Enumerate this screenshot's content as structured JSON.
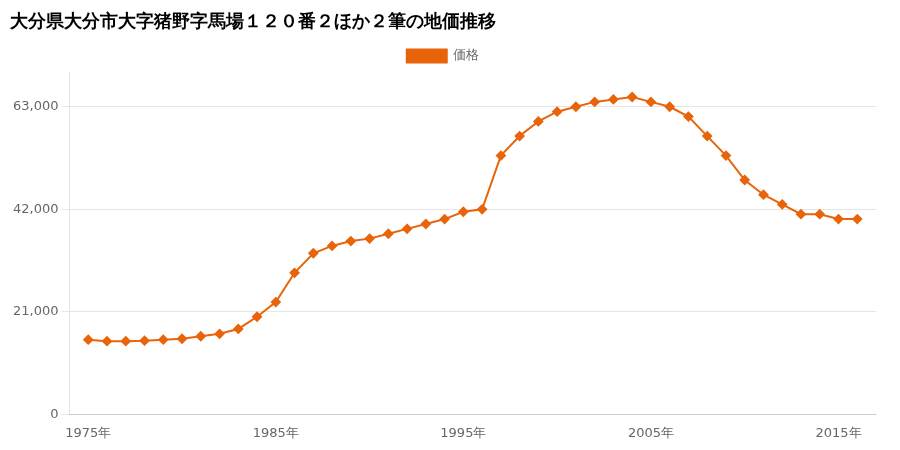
{
  "chart_data": {
    "type": "line",
    "title": "大分県大分市大字猪野字馬場１２０番２ほか２筆の地価推移",
    "series": [
      {
        "name": "価格",
        "color": "#E8640A",
        "marker": "diamond",
        "values": [
          15300,
          15000,
          15000,
          15100,
          15300,
          15500,
          16000,
          16500,
          17500,
          20000,
          23000,
          29000,
          33000,
          34500,
          35500,
          36000,
          37000,
          38000,
          39000,
          40000,
          41500,
          42000,
          53000,
          57000,
          60000,
          62000,
          63000,
          64000,
          64500,
          65000,
          64000,
          63000,
          61000,
          57000,
          53000,
          48000,
          45000,
          43000,
          41000,
          41000,
          40000,
          40000
        ]
      }
    ],
    "x": [
      1975,
      1976,
      1977,
      1978,
      1979,
      1980,
      1981,
      1982,
      1983,
      1984,
      1985,
      1986,
      1987,
      1988,
      1989,
      1990,
      1991,
      1992,
      1993,
      1994,
      1995,
      1996,
      1997,
      1998,
      1999,
      2000,
      2001,
      2002,
      2003,
      2004,
      2005,
      2006,
      2007,
      2008,
      2009,
      2010,
      2011,
      2012,
      2013,
      2014,
      2015,
      2016
    ],
    "xlim": [
      1974,
      2017
    ],
    "xticks": [
      {
        "value": 1975,
        "label": "1975年"
      },
      {
        "value": 1985,
        "label": "1985年"
      },
      {
        "value": 1995,
        "label": "1995年"
      },
      {
        "value": 2005,
        "label": "2005年"
      },
      {
        "value": 2015,
        "label": "2015年"
      }
    ],
    "ylim": [
      0,
      70000
    ],
    "yticks": [
      0,
      {
        "value": 21000,
        "label": "21,000"
      },
      {
        "value": 42000,
        "label": "42,000"
      },
      {
        "value": 63000,
        "label": "63,000"
      }
    ],
    "grid": "y",
    "legend": "top"
  }
}
